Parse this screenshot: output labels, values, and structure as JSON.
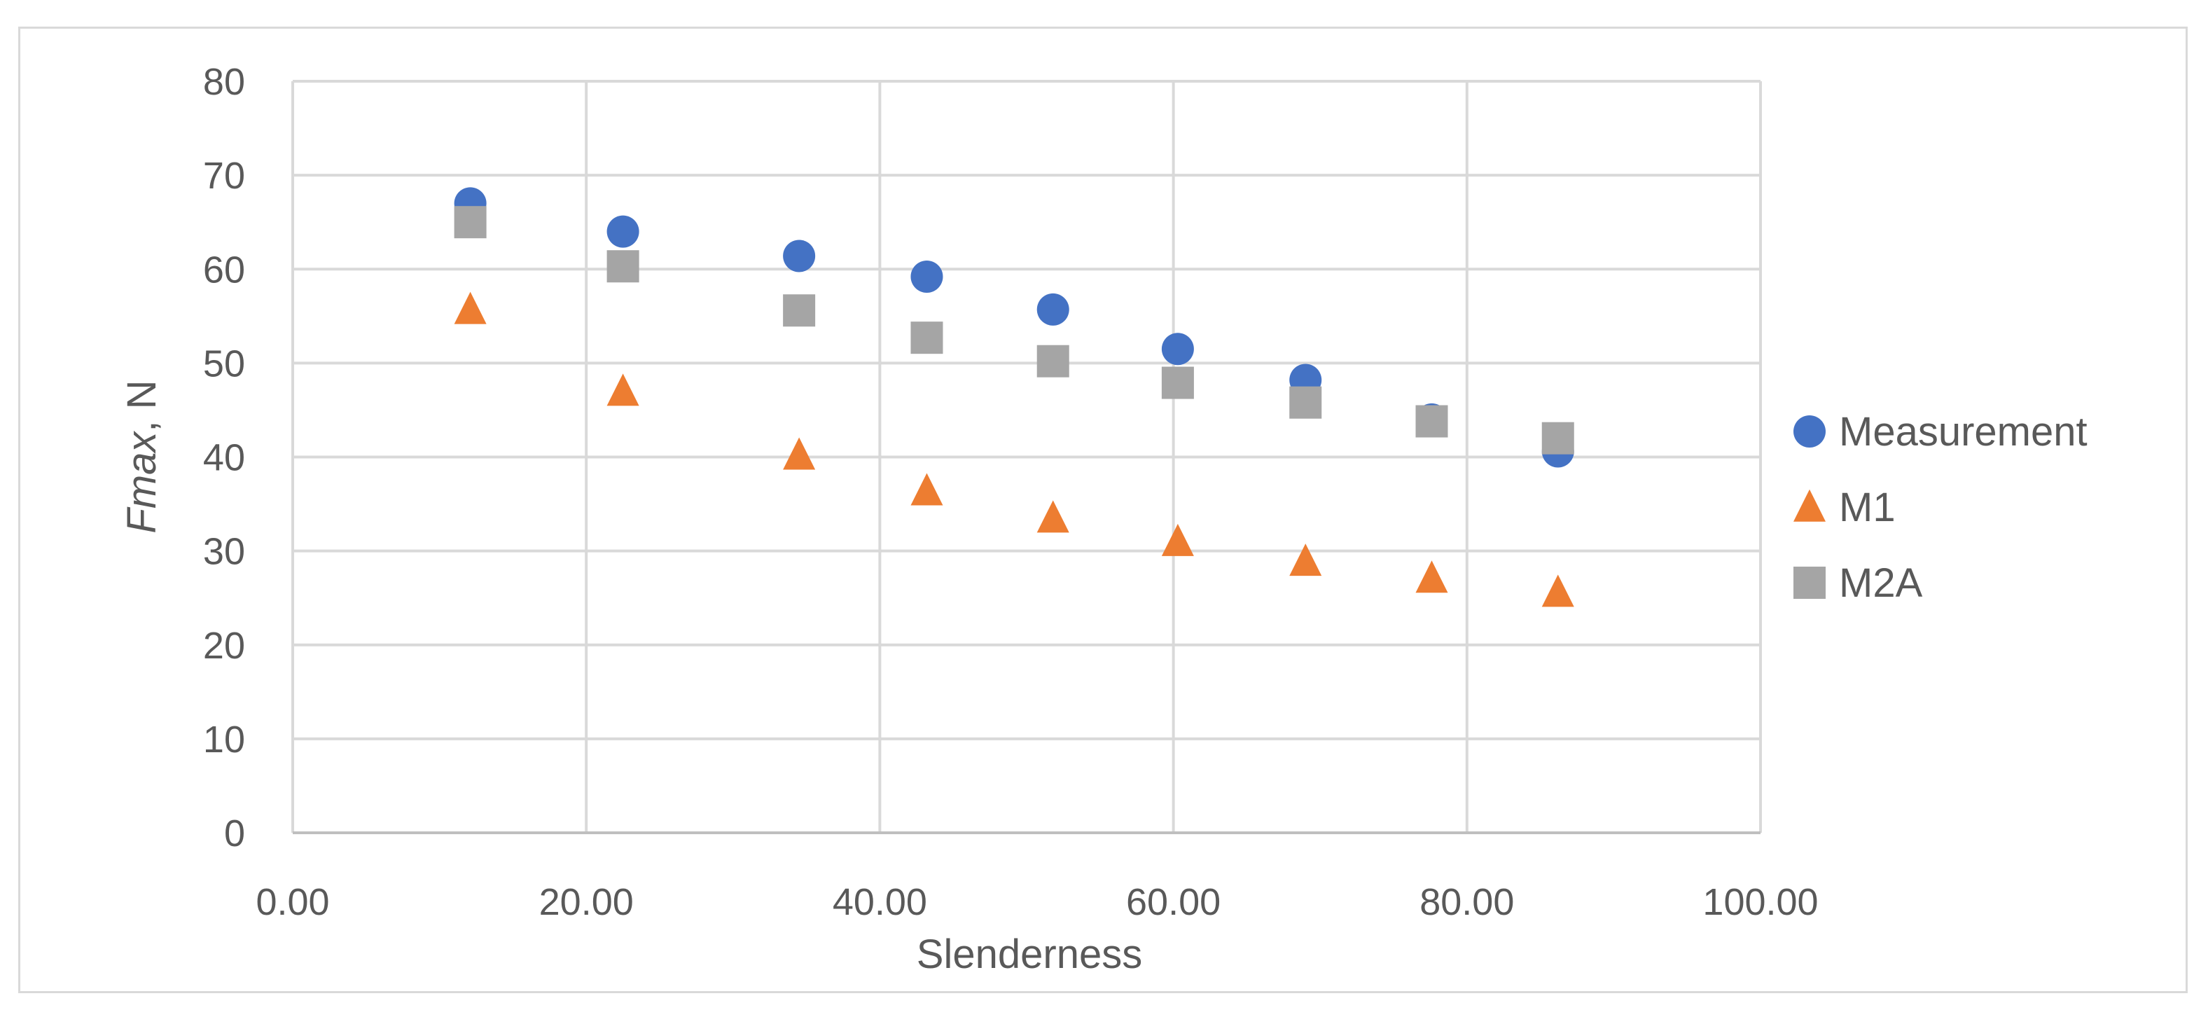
{
  "chart_data": {
    "type": "scatter",
    "title": "",
    "xlabel": "Slenderness",
    "ylabel": {
      "italic": "Fmax",
      "rest": ", N"
    },
    "xlim": [
      0,
      100
    ],
    "ylim": [
      0,
      80
    ],
    "xticks": [
      "0.00",
      "20.00",
      "40.00",
      "60.00",
      "80.00",
      "100.00"
    ],
    "yticks": [
      "0",
      "10",
      "20",
      "30",
      "40",
      "50",
      "60",
      "70",
      "80"
    ],
    "grid": true,
    "legend_position": "right",
    "series": [
      {
        "name": "Measurement",
        "marker": "circle",
        "color": "#4472C4",
        "points": [
          [
            12.1,
            67
          ],
          [
            22.5,
            64
          ],
          [
            34.5,
            61.4
          ],
          [
            43.2,
            59.2
          ],
          [
            51.8,
            55.7
          ],
          [
            60.3,
            51.5
          ],
          [
            69.0,
            48.2
          ],
          [
            77.6,
            44
          ],
          [
            86.2,
            40.6
          ]
        ]
      },
      {
        "name": "M1",
        "marker": "triangle",
        "color": "#ED7D31",
        "points": [
          [
            12.1,
            55.7
          ],
          [
            22.5,
            47
          ],
          [
            34.5,
            40.2
          ],
          [
            43.2,
            36.4
          ],
          [
            51.8,
            33.5
          ],
          [
            60.3,
            31
          ],
          [
            69.0,
            28.9
          ],
          [
            77.6,
            27.1
          ],
          [
            86.2,
            25.6
          ]
        ]
      },
      {
        "name": "M2A",
        "marker": "square",
        "color": "#A5A5A5",
        "points": [
          [
            12.1,
            65
          ],
          [
            22.5,
            60.3
          ],
          [
            34.5,
            55.6
          ],
          [
            43.2,
            52.7
          ],
          [
            51.8,
            50.2
          ],
          [
            60.3,
            47.9
          ],
          [
            69.0,
            45.8
          ],
          [
            77.6,
            43.8
          ],
          [
            86.2,
            42
          ]
        ]
      }
    ]
  }
}
